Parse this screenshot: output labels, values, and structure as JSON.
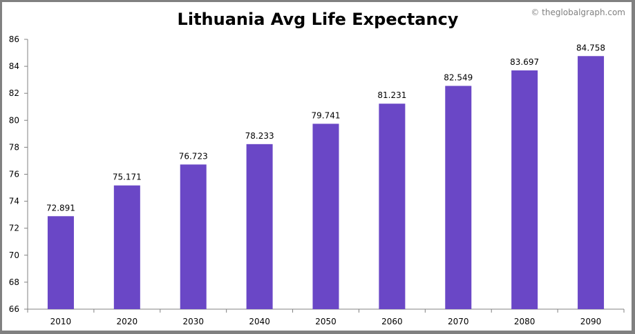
{
  "watermark": "© theglobalgraph.com",
  "chart_data": {
    "type": "bar",
    "title": "Lithuania Avg Life Expectancy",
    "xlabel": "",
    "ylabel": "",
    "categories": [
      "2010",
      "2020",
      "2030",
      "2040",
      "2050",
      "2060",
      "2070",
      "2080",
      "2090"
    ],
    "values": [
      72.891,
      75.171,
      76.723,
      78.233,
      79.741,
      81.231,
      82.549,
      83.697,
      84.758
    ],
    "data_labels": [
      "72.891",
      "75.171",
      "76.723",
      "78.233",
      "79.741",
      "81.231",
      "82.549",
      "83.697",
      "84.758"
    ],
    "ylim": [
      66,
      86
    ],
    "yticks": [
      66,
      68,
      70,
      72,
      74,
      76,
      78,
      80,
      82,
      84,
      86
    ],
    "grid": false,
    "legend": "none",
    "bar_color": "#6a47c6"
  }
}
